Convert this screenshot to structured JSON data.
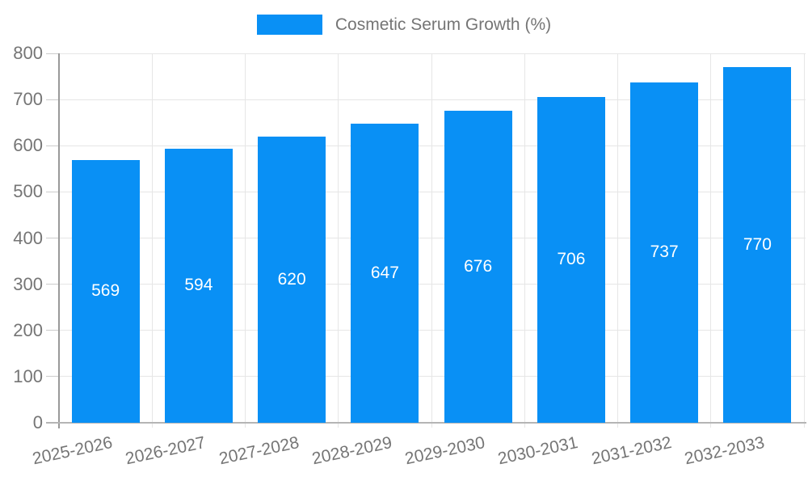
{
  "chart_data": {
    "type": "bar",
    "title": "",
    "legend": {
      "label": "Cosmetic Serum Growth (%)",
      "position": "top"
    },
    "categories": [
      "2025-2026",
      "2026-2027",
      "2027-2028",
      "2028-2029",
      "2029-2030",
      "2030-2031",
      "2031-2032",
      "2032-2033"
    ],
    "values": [
      569,
      594,
      620,
      647,
      676,
      706,
      737,
      770
    ],
    "ytick_labels": [
      "0",
      "100",
      "200",
      "300",
      "400",
      "500",
      "600",
      "700",
      "800"
    ],
    "ylim": [
      0,
      800
    ],
    "ytick_step": 100,
    "grid": true,
    "xlabel": "",
    "ylabel": "",
    "bar_color": "#0990f5",
    "value_label_color": "#ffffff",
    "axis_text_color": "#757575",
    "gridline_color": "#e6e6e6",
    "x_axis_line_color": "#b5b5b5",
    "y_axis_line_color": "#999999"
  }
}
